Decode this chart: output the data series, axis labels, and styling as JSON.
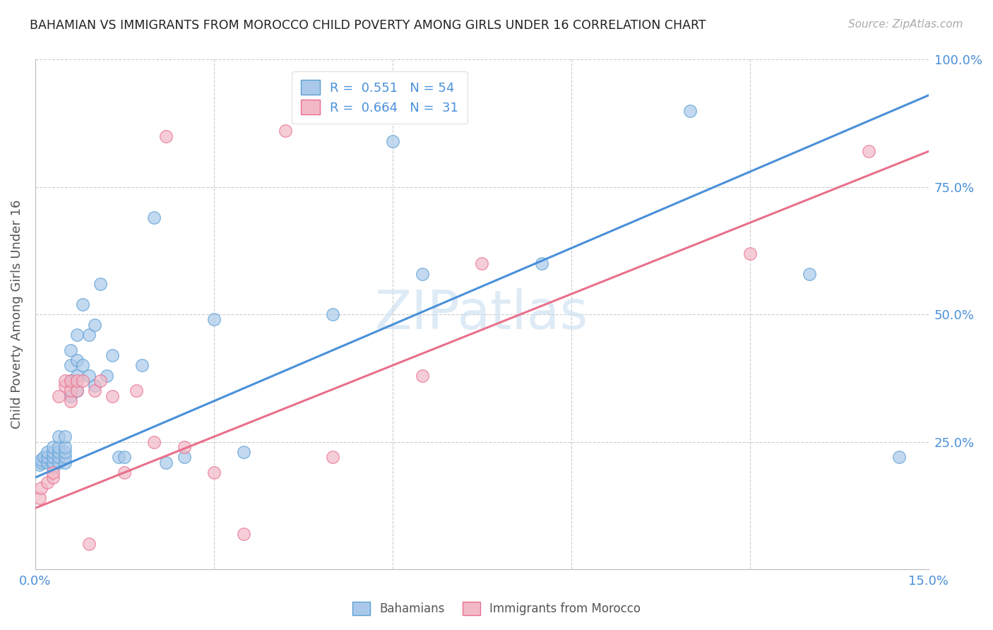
{
  "title": "BAHAMIAN VS IMMIGRANTS FROM MOROCCO CHILD POVERTY AMONG GIRLS UNDER 16 CORRELATION CHART",
  "source": "Source: ZipAtlas.com",
  "xlabel_label": "Bahamians",
  "xlabel_label2": "Immigrants from Morocco",
  "ylabel": "Child Poverty Among Girls Under 16",
  "xlim": [
    0,
    0.15
  ],
  "ylim": [
    0,
    1.0
  ],
  "xticks": [
    0.0,
    0.03,
    0.06,
    0.09,
    0.12,
    0.15
  ],
  "xticklabels": [
    "0.0%",
    "",
    "",
    "",
    "",
    "15.0%"
  ],
  "yticks": [
    0.0,
    0.25,
    0.5,
    0.75,
    1.0
  ],
  "yticklabels_right": [
    "",
    "25.0%",
    "50.0%",
    "75.0%",
    "100.0%"
  ],
  "r_blue": 0.551,
  "n_blue": 54,
  "r_pink": 0.664,
  "n_pink": 31,
  "blue_color": "#aac9ea",
  "pink_color": "#f2b8c6",
  "blue_edge_color": "#5a9fd4",
  "pink_edge_color": "#e87090",
  "blue_line_color": "#4a90d9",
  "pink_line_color": "#e8708a",
  "watermark": "ZIPatlas",
  "watermark_color": "#c8dff0",
  "blue_scatter_x": [
    0.0008,
    0.001,
    0.001,
    0.0015,
    0.002,
    0.002,
    0.002,
    0.003,
    0.003,
    0.003,
    0.003,
    0.003,
    0.004,
    0.004,
    0.004,
    0.004,
    0.004,
    0.005,
    0.005,
    0.005,
    0.005,
    0.005,
    0.006,
    0.006,
    0.006,
    0.006,
    0.007,
    0.007,
    0.007,
    0.007,
    0.008,
    0.008,
    0.009,
    0.009,
    0.01,
    0.01,
    0.011,
    0.012,
    0.013,
    0.014,
    0.015,
    0.018,
    0.02,
    0.022,
    0.025,
    0.03,
    0.035,
    0.05,
    0.06,
    0.065,
    0.085,
    0.11,
    0.13,
    0.145
  ],
  "blue_scatter_y": [
    0.205,
    0.21,
    0.215,
    0.22,
    0.21,
    0.22,
    0.23,
    0.2,
    0.21,
    0.22,
    0.23,
    0.24,
    0.21,
    0.22,
    0.23,
    0.24,
    0.26,
    0.21,
    0.22,
    0.23,
    0.24,
    0.26,
    0.34,
    0.37,
    0.4,
    0.43,
    0.35,
    0.38,
    0.41,
    0.46,
    0.4,
    0.52,
    0.38,
    0.46,
    0.36,
    0.48,
    0.56,
    0.38,
    0.42,
    0.22,
    0.22,
    0.4,
    0.69,
    0.21,
    0.22,
    0.49,
    0.23,
    0.5,
    0.84,
    0.58,
    0.6,
    0.9,
    0.58,
    0.22
  ],
  "pink_scatter_x": [
    0.0008,
    0.001,
    0.002,
    0.003,
    0.003,
    0.004,
    0.005,
    0.005,
    0.006,
    0.006,
    0.006,
    0.007,
    0.007,
    0.008,
    0.009,
    0.01,
    0.011,
    0.013,
    0.015,
    0.017,
    0.02,
    0.022,
    0.025,
    0.03,
    0.035,
    0.042,
    0.05,
    0.065,
    0.075,
    0.12,
    0.14
  ],
  "pink_scatter_y": [
    0.14,
    0.16,
    0.17,
    0.18,
    0.19,
    0.34,
    0.36,
    0.37,
    0.33,
    0.35,
    0.37,
    0.35,
    0.37,
    0.37,
    0.05,
    0.35,
    0.37,
    0.34,
    0.19,
    0.35,
    0.25,
    0.85,
    0.24,
    0.19,
    0.07,
    0.86,
    0.22,
    0.38,
    0.6,
    0.62,
    0.82
  ],
  "blue_line_x": [
    0.0,
    0.15
  ],
  "blue_line_y": [
    0.18,
    0.93
  ],
  "pink_line_x": [
    0.0,
    0.15
  ],
  "pink_line_y": [
    0.12,
    0.82
  ]
}
